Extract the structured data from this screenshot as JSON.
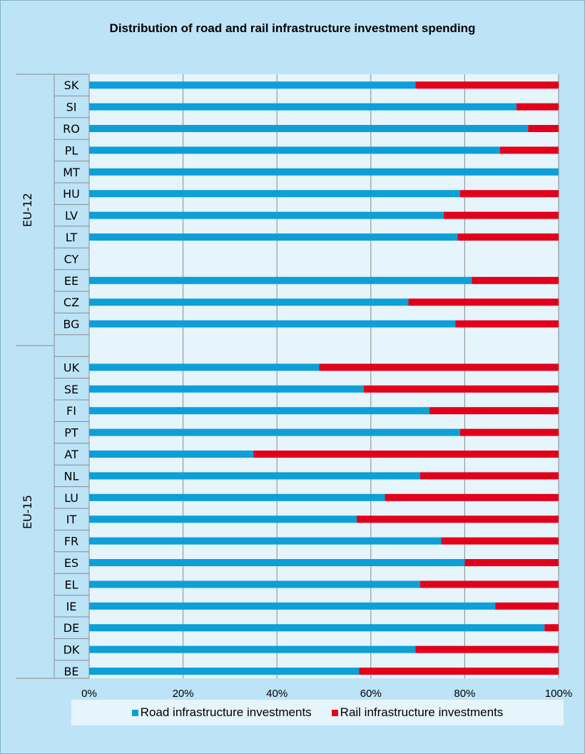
{
  "chart_data": {
    "type": "bar",
    "orientation": "horizontal",
    "stacked": "percent",
    "title": "Distribution of road and rail infrastructure investment spending",
    "groups": [
      {
        "name": "EU-12",
        "categories": [
          "SK",
          "SI",
          "RO",
          "PL",
          "MT",
          "HU",
          "LV",
          "LT",
          "CY",
          "EE",
          "CZ",
          "BG"
        ],
        "road": [
          69.5,
          91,
          93.5,
          87.5,
          100,
          79,
          75.5,
          78.5,
          null,
          81.5,
          68,
          78
        ],
        "rail": [
          30.5,
          9,
          6.5,
          12.5,
          0,
          21,
          24.5,
          21.5,
          null,
          18.5,
          32,
          22
        ]
      },
      {
        "name": "EU-15",
        "categories": [
          "UK",
          "SE",
          "FI",
          "PT",
          "AT",
          "NL",
          "LU",
          "IT",
          "FR",
          "ES",
          "EL",
          "IE",
          "DE",
          "DK",
          "BE"
        ],
        "road": [
          49,
          58.5,
          72.5,
          79,
          35,
          70.5,
          63,
          57,
          75,
          80,
          70.5,
          86.5,
          97,
          69.5,
          57.5
        ],
        "rail": [
          51,
          41.5,
          27.5,
          21,
          65,
          29.5,
          37,
          43,
          25,
          20,
          29.5,
          13.5,
          3,
          30.5,
          42.5
        ]
      }
    ],
    "series": [
      {
        "name": "Road infrastructure investments",
        "color": "#0d9fd8"
      },
      {
        "name": "Rail infrastructure investments",
        "color": "#e2001a"
      }
    ],
    "x_ticks": [
      "0%",
      "20%",
      "40%",
      "60%",
      "80%",
      "100%"
    ],
    "xlim": [
      0,
      100
    ],
    "grid": "vertical",
    "legend_position": "bottom"
  }
}
